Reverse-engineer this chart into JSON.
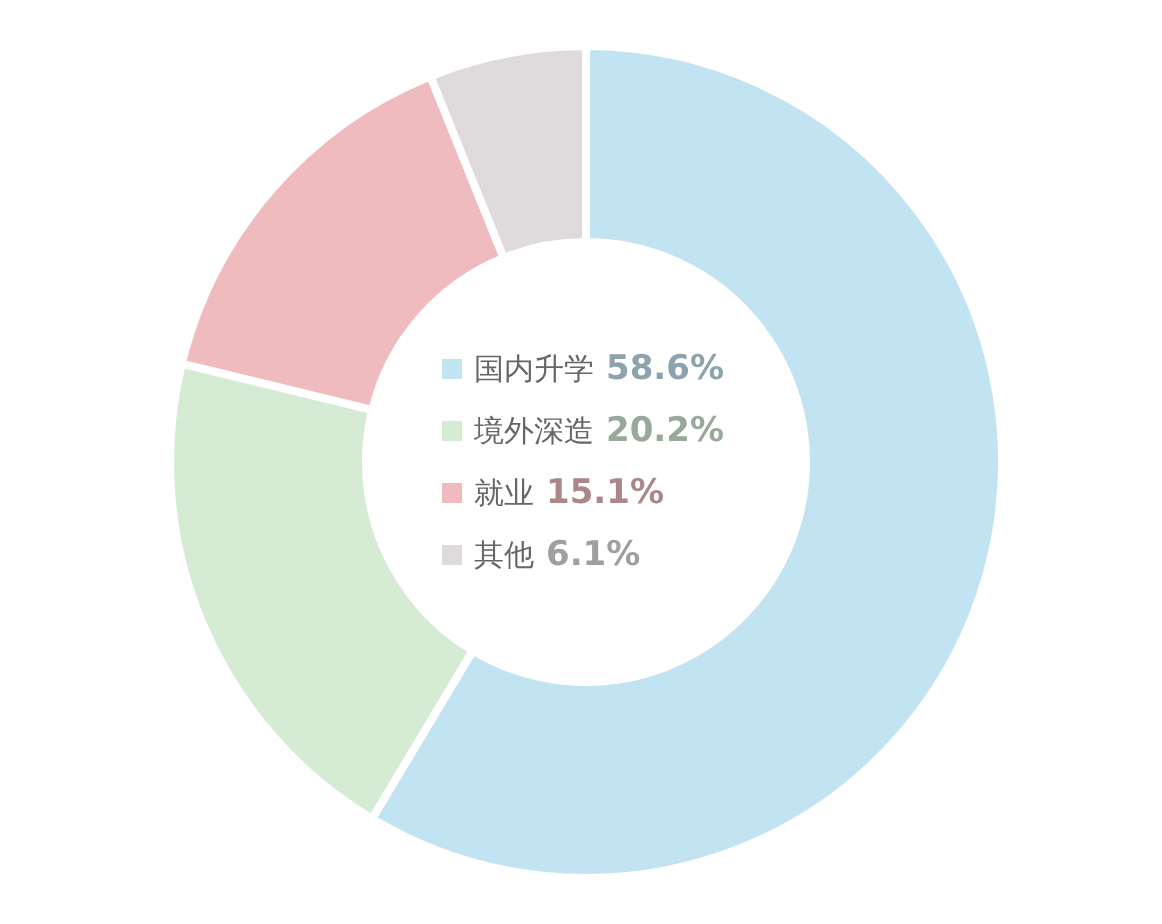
{
  "chart_data": {
    "type": "donut",
    "categories": [
      "国内升学",
      "境外深造",
      "就业",
      "其他"
    ],
    "values": [
      58.6,
      20.2,
      15.1,
      6.1
    ],
    "colors": [
      "#c2e3f2",
      "#d5ebd4",
      "#efbbbe",
      "#dfdbdc"
    ],
    "value_labels": [
      "58.6%",
      "20.2%",
      "15.1%",
      "6.1%"
    ],
    "legend": "center"
  }
}
